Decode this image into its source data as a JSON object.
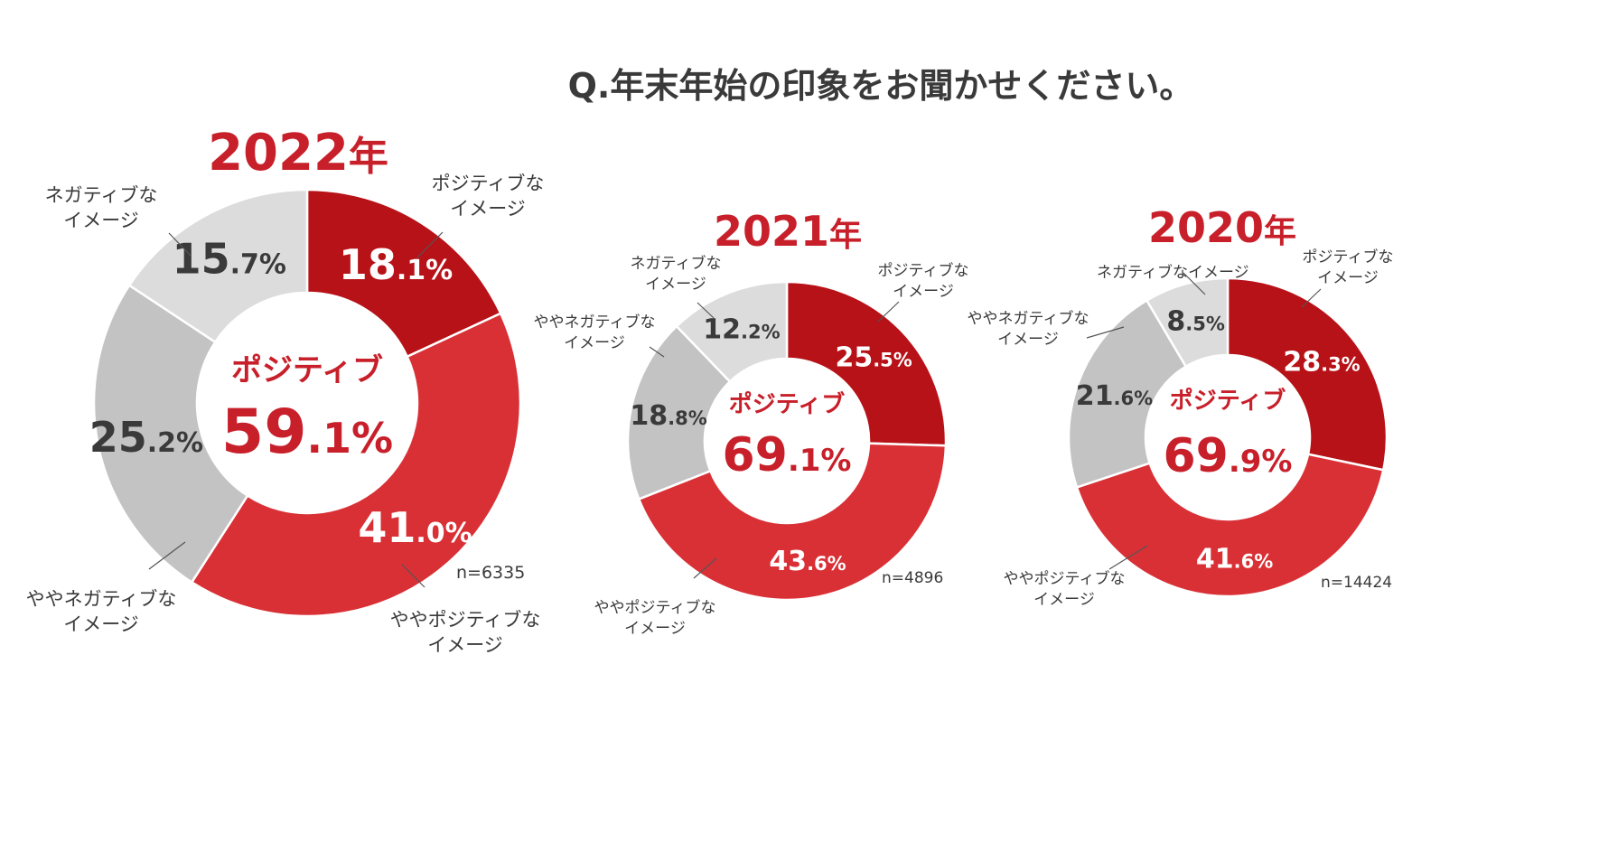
{
  "title": "Q.年末年始の印象をお聞かせください。",
  "colors": {
    "positive": "#b71218",
    "somewhat_positive": "#d93036",
    "somewhat_negative": "#c3c3c3",
    "negative": "#dcdcdc",
    "accent": "#c8202a"
  },
  "chart_data": [
    {
      "type": "pie",
      "year_number": "2022",
      "year_suffix": "年",
      "n_label": "n=6335",
      "center_label": "ポジティブ",
      "center_value": "59.1",
      "center_unit": "%",
      "slices": [
        {
          "key": "positive",
          "label_lines": [
            "ポジティブな",
            "イメージ"
          ],
          "value": 18.1,
          "int": "18",
          "dec": ".1%"
        },
        {
          "key": "somewhat_positive",
          "label_lines": [
            "ややポジティブな",
            "イメージ"
          ],
          "value": 41.0,
          "int": "41",
          "dec": ".0%"
        },
        {
          "key": "somewhat_negative",
          "label_lines": [
            "ややネガティブな",
            "イメージ"
          ],
          "value": 25.2,
          "int": "25",
          "dec": ".2%"
        },
        {
          "key": "negative",
          "label_lines": [
            "ネガティブな",
            "イメージ"
          ],
          "value": 15.7,
          "int": "15",
          "dec": ".7%"
        }
      ]
    },
    {
      "type": "pie",
      "year_number": "2021",
      "year_suffix": "年",
      "n_label": "n=4896",
      "center_label": "ポジティブ",
      "center_value": "69.1",
      "center_unit": "%",
      "slices": [
        {
          "key": "positive",
          "label_lines": [
            "ポジティブな",
            "イメージ"
          ],
          "value": 25.5,
          "int": "25",
          "dec": ".5%"
        },
        {
          "key": "somewhat_positive",
          "label_lines": [
            "ややポジティブな",
            "イメージ"
          ],
          "value": 43.6,
          "int": "43",
          "dec": ".6%"
        },
        {
          "key": "somewhat_negative",
          "label_lines": [
            "ややネガティブな",
            "イメージ"
          ],
          "value": 18.8,
          "int": "18",
          "dec": ".8%"
        },
        {
          "key": "negative",
          "label_lines": [
            "ネガティブな",
            "イメージ"
          ],
          "value": 12.2,
          "int": "12",
          "dec": ".2%"
        }
      ]
    },
    {
      "type": "pie",
      "year_number": "2020",
      "year_suffix": "年",
      "n_label": "n=14424",
      "center_label": "ポジティブ",
      "center_value": "69.9",
      "center_unit": "%",
      "slices": [
        {
          "key": "positive",
          "label_lines": [
            "ポジティブな",
            "イメージ"
          ],
          "value": 28.3,
          "int": "28",
          "dec": ".3%"
        },
        {
          "key": "somewhat_positive",
          "label_lines": [
            "ややポジティブな",
            "イメージ"
          ],
          "value": 41.6,
          "int": "41",
          "dec": ".6%"
        },
        {
          "key": "somewhat_negative",
          "label_lines": [
            "ややネガティブな",
            "イメージ"
          ],
          "value": 21.6,
          "int": "21",
          "dec": ".6%"
        },
        {
          "key": "negative",
          "label_lines": [
            "ネガティブなイメージ"
          ],
          "value": 8.5,
          "int": "8",
          "dec": ".5%"
        }
      ]
    }
  ]
}
